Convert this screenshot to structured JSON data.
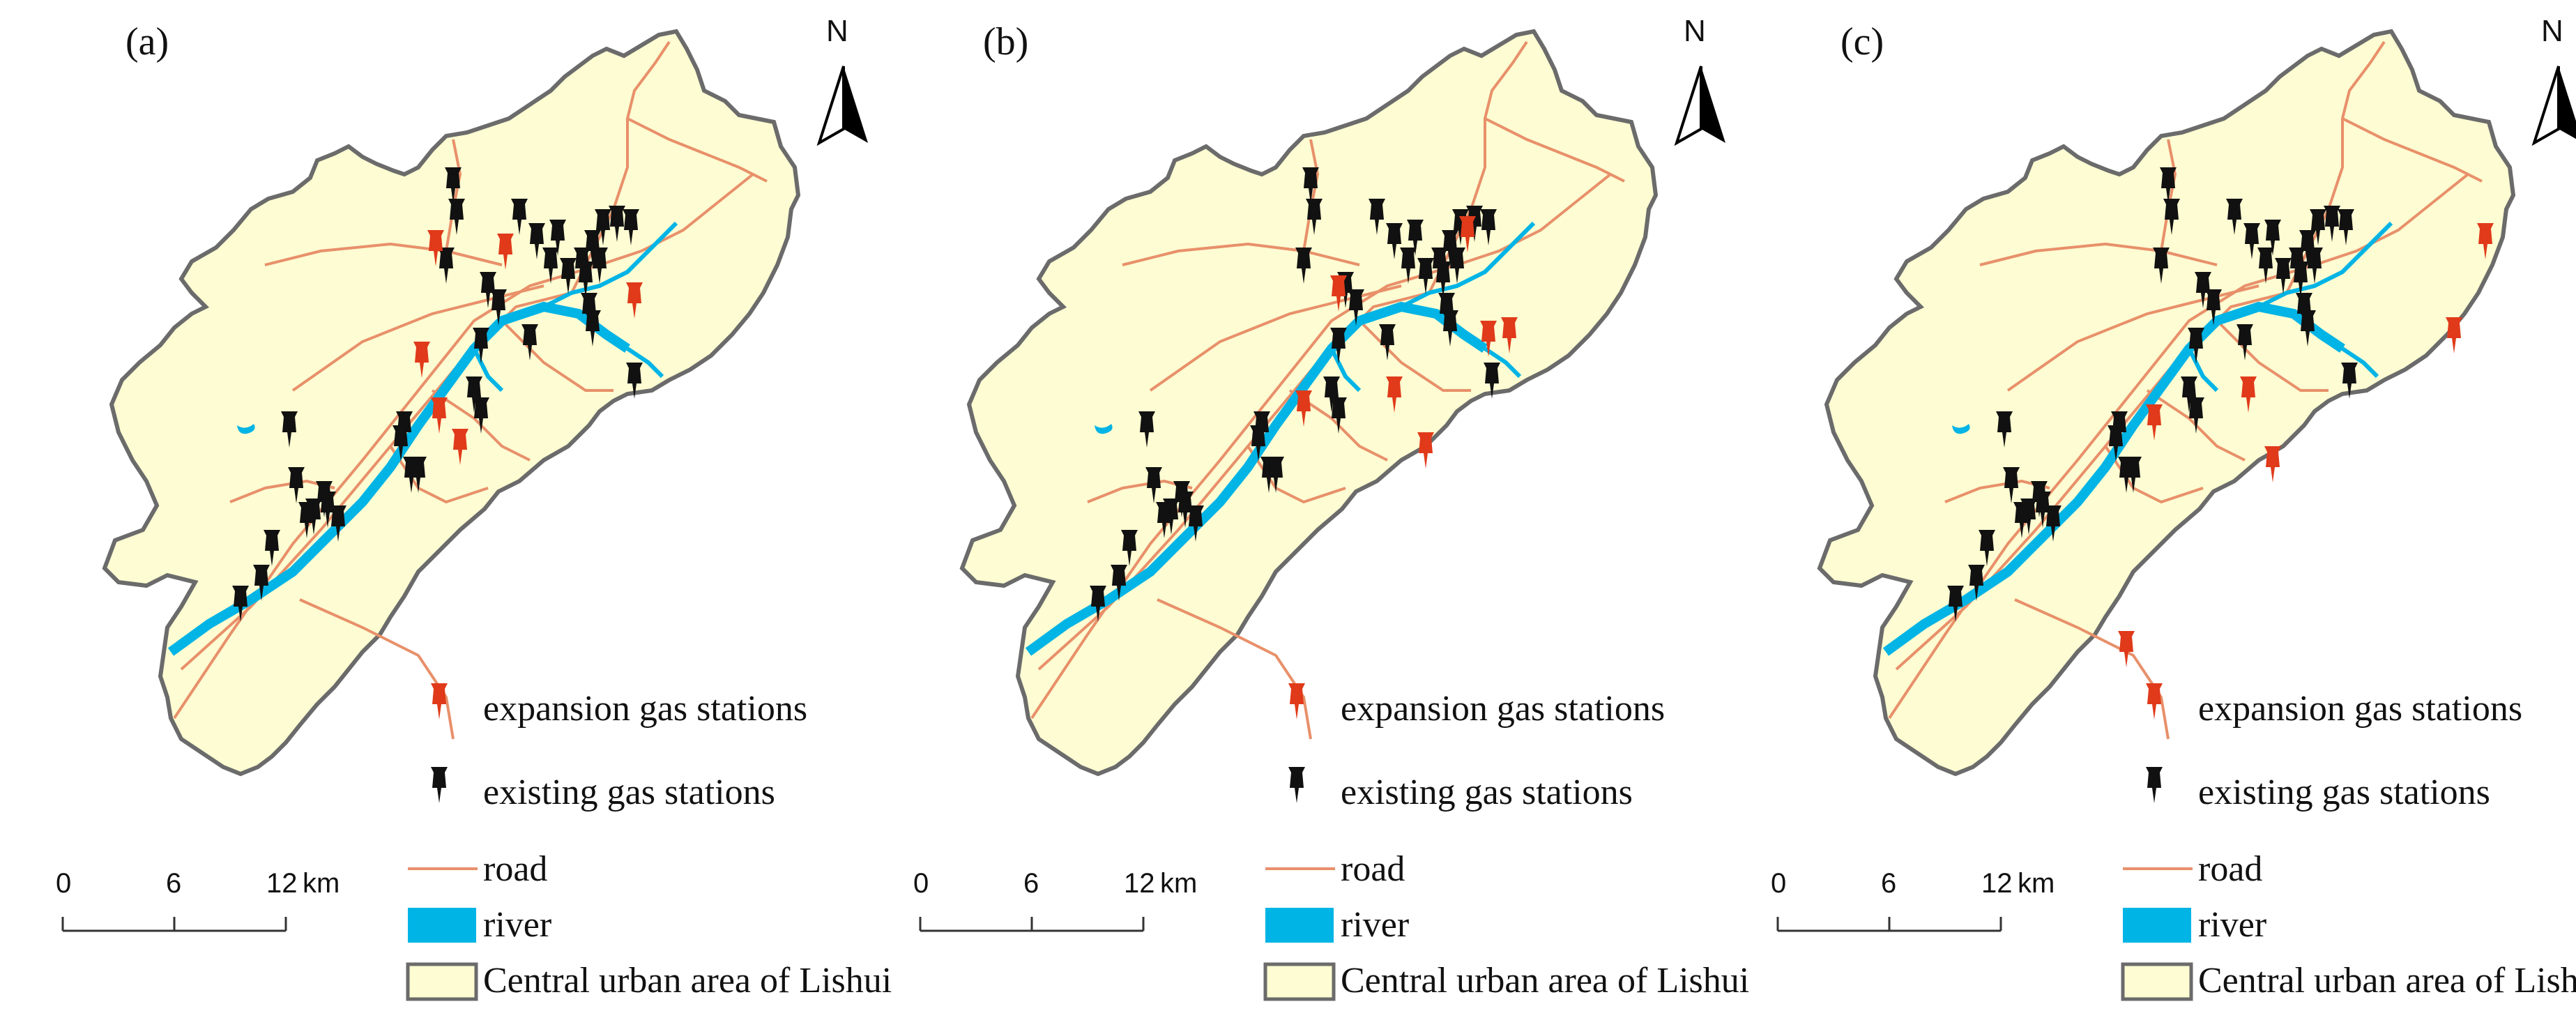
{
  "panels": [
    {
      "label": "(a)",
      "shift": 0,
      "expansion": [
        [
          625,
          330
        ],
        [
          725,
          335
        ],
        [
          910,
          405
        ],
        [
          605,
          490
        ],
        [
          630,
          570
        ],
        [
          660,
          615
        ]
      ]
    },
    {
      "label": "(b)",
      "shift": 0,
      "expansion": [
        [
          690,
          395
        ],
        [
          875,
          310
        ],
        [
          770,
          540
        ],
        [
          935,
          455
        ],
        [
          905,
          460
        ],
        [
          815,
          620
        ],
        [
          640,
          560
        ]
      ]
    },
    {
      "label": "(c)",
      "shift": 0,
      "expansion": [
        [
          1105,
          320
        ],
        [
          1060,
          455
        ],
        [
          765,
          540
        ],
        [
          800,
          640
        ],
        [
          630,
          580
        ],
        [
          590,
          905
        ]
      ]
    }
  ],
  "existing_stations": [
    [
      650,
      240
    ],
    [
      655,
      285
    ],
    [
      640,
      355
    ],
    [
      745,
      285
    ],
    [
      800,
      315
    ],
    [
      865,
      300
    ],
    [
      885,
      295
    ],
    [
      905,
      300
    ],
    [
      770,
      320
    ],
    [
      790,
      355
    ],
    [
      815,
      370
    ],
    [
      835,
      355
    ],
    [
      850,
      330
    ],
    [
      860,
      355
    ],
    [
      840,
      375
    ],
    [
      845,
      420
    ],
    [
      850,
      445
    ],
    [
      700,
      390
    ],
    [
      715,
      415
    ],
    [
      690,
      470
    ],
    [
      760,
      465
    ],
    [
      910,
      520
    ],
    [
      680,
      540
    ],
    [
      690,
      570
    ],
    [
      580,
      590
    ],
    [
      590,
      655
    ],
    [
      600,
      655
    ],
    [
      575,
      610
    ],
    [
      415,
      590
    ],
    [
      425,
      670
    ],
    [
      465,
      690
    ],
    [
      450,
      715
    ],
    [
      470,
      705
    ],
    [
      485,
      725
    ],
    [
      440,
      720
    ],
    [
      390,
      760
    ],
    [
      375,
      810
    ],
    [
      345,
      840
    ]
  ],
  "legend": {
    "expansion_label": "expansion gas stations",
    "existing_label": "existing gas stations",
    "road_label": "road",
    "river_label": "river",
    "area_label": "Central urban area of Lishui"
  },
  "north_label": "N",
  "scale": {
    "ticks": [
      "0",
      "6",
      "12"
    ],
    "unit": "km"
  },
  "colors": {
    "land": "#fdfcd2",
    "border": "#6b6b6b",
    "road": "#e8906a",
    "river": "#00b4e6",
    "expansion": "#e03a1a",
    "existing": "#111111"
  }
}
